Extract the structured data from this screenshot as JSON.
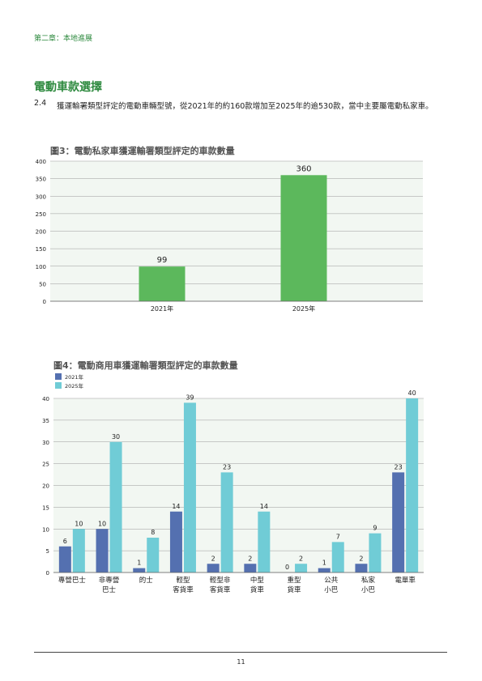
{
  "header": {
    "chapter": "第二章：本地進展"
  },
  "section": {
    "title": "電動車款選擇",
    "para_num": "2.4",
    "para_text": "獲運輸署類型評定的電動車輛型號，從2021年的約160款增加至2025年的逾530款，當中主要屬電動私家車。"
  },
  "colors": {
    "green": "#5cb85c",
    "blue": "#5470b0",
    "teal": "#70ccd6",
    "heading": "#2e8a3f"
  },
  "chart_data": [
    {
      "type": "bar",
      "title": "圖3：電動私家車獲運輸署類型評定的車款數量",
      "categories": [
        "2021年",
        "2025年"
      ],
      "values": [
        99,
        360
      ],
      "ylim": [
        0,
        400
      ],
      "yticks": [
        0,
        50,
        100,
        150,
        200,
        250,
        300,
        350,
        400
      ],
      "grid": true
    },
    {
      "type": "bar",
      "title": "圖4：電動商用車獲運輸署類型評定的車款數量",
      "categories": [
        [
          "專營巴士"
        ],
        [
          "非專營",
          "巴士"
        ],
        [
          "的士"
        ],
        [
          "輕型",
          "客貨車"
        ],
        [
          "輕型非",
          "客貨車"
        ],
        [
          "中型",
          "貨車"
        ],
        [
          "重型",
          "貨車"
        ],
        [
          "公共",
          "小巴"
        ],
        [
          "私家",
          "小巴"
        ],
        [
          "電單車"
        ]
      ],
      "series": [
        {
          "name": "2021年",
          "values": [
            6,
            10,
            1,
            14,
            2,
            2,
            0,
            1,
            2,
            23
          ]
        },
        {
          "name": "2025年",
          "values": [
            10,
            30,
            8,
            39,
            23,
            14,
            2,
            7,
            9,
            40
          ]
        }
      ],
      "ylim": [
        0,
        40
      ],
      "yticks": [
        0,
        5,
        10,
        15,
        20,
        25,
        30,
        35,
        40
      ],
      "legend": "top-left",
      "grid": true
    }
  ],
  "footer": {
    "page": "11"
  }
}
